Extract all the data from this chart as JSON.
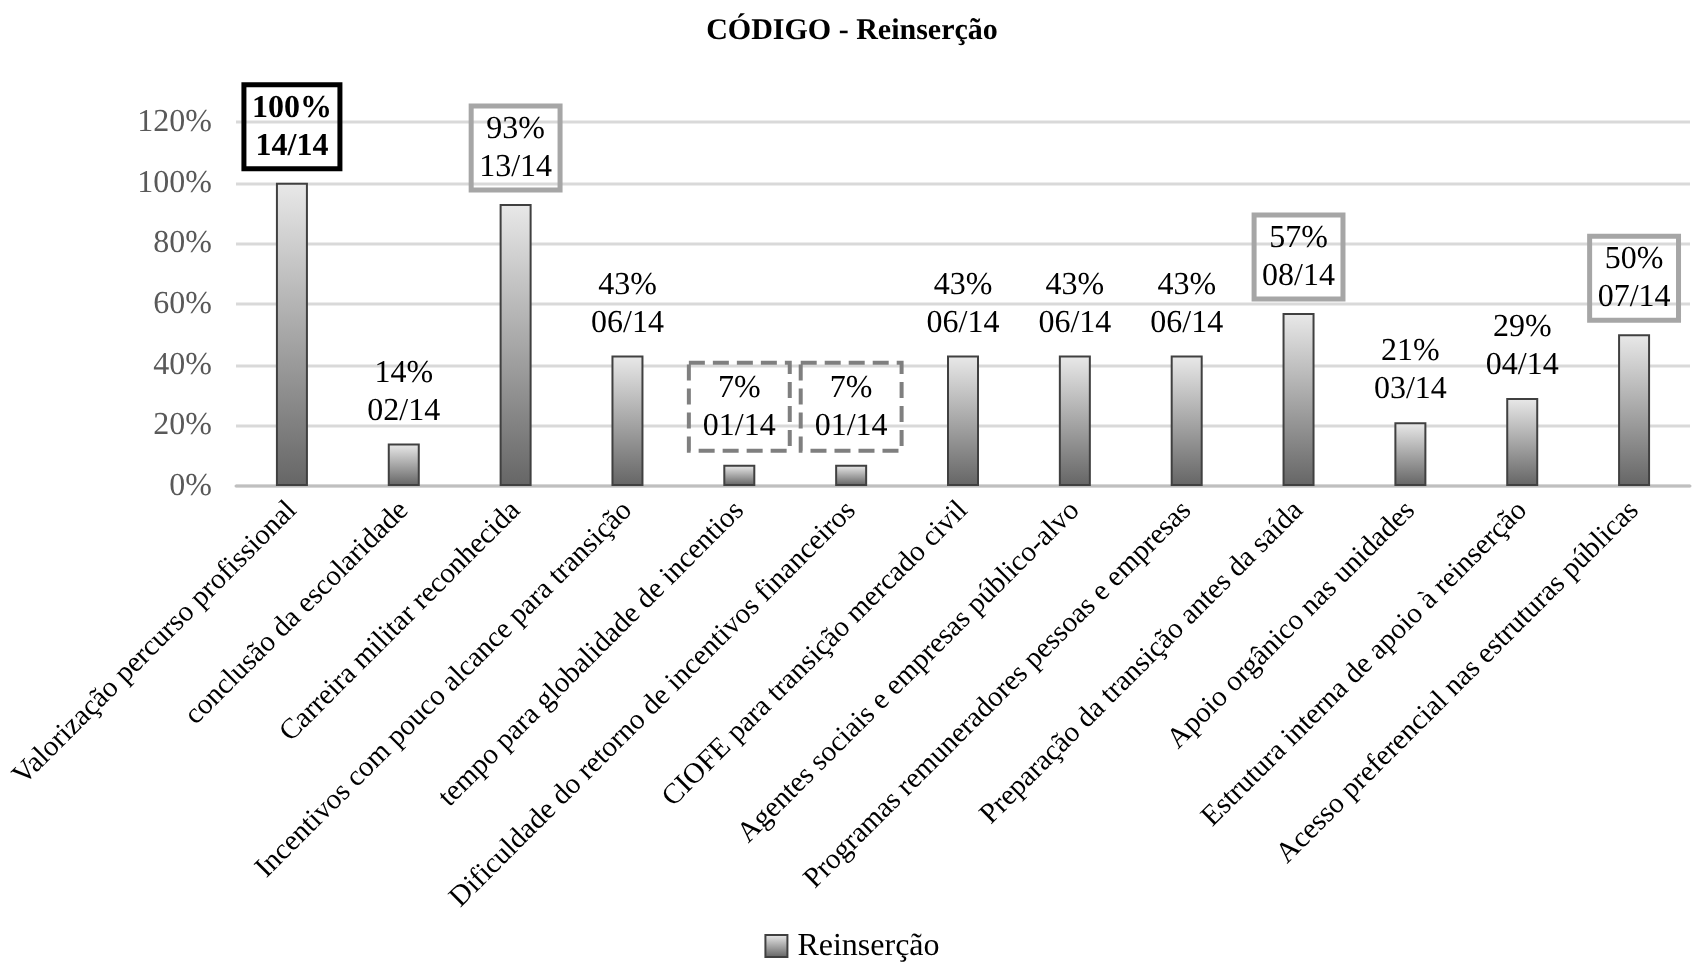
{
  "chart_data": {
    "type": "bar",
    "title": "CÓDIGO - Reinserção",
    "categories": [
      "Valorização percurso profissional",
      "conclusão da escolaridade",
      "Carreira militar reconhecida",
      "Incentivos com pouco alcance para transição",
      "tempo para globalidade de incentios",
      "Dificuldade do retorno de incentivos financeiros",
      "CIOFE para transição mercado civil",
      "Agentes sociais e empresas público-alvo",
      "Programas remuneradores pessoas e empresas",
      "Preparação da transição antes da saída",
      "Apoio orgânico nas unidades",
      "Estrutura interna de apoio à reinserção",
      "Acesso preferencial nas estruturas públicas"
    ],
    "series": [
      {
        "name": "Reinserção",
        "color": "#404040",
        "values": [
          100,
          14,
          93,
          43,
          7,
          7,
          43,
          43,
          43,
          57,
          21,
          29,
          50
        ],
        "value_labels": [
          "100%\n14/14",
          "14%\n02/14",
          "93%\n13/14",
          "43%\n06/14",
          "7%\n01/14",
          "7%\n01/14",
          "43%\n06/14",
          "43%\n06/14",
          "43%\n06/14",
          "57%\n08/14",
          "21%\n03/14",
          "29%\n04/14",
          "50%\n07/14"
        ]
      }
    ],
    "ylim": [
      0,
      120
    ],
    "yticks": [
      {
        "value": 0,
        "label": "0%"
      },
      {
        "value": 20,
        "label": "20%"
      },
      {
        "value": 40,
        "label": "40%"
      },
      {
        "value": 60,
        "label": "60%"
      },
      {
        "value": 80,
        "label": "80%"
      },
      {
        "value": 100,
        "label": "100%"
      },
      {
        "value": 120,
        "label": "120%"
      }
    ],
    "grid": "y",
    "legend": "bottom"
  }
}
